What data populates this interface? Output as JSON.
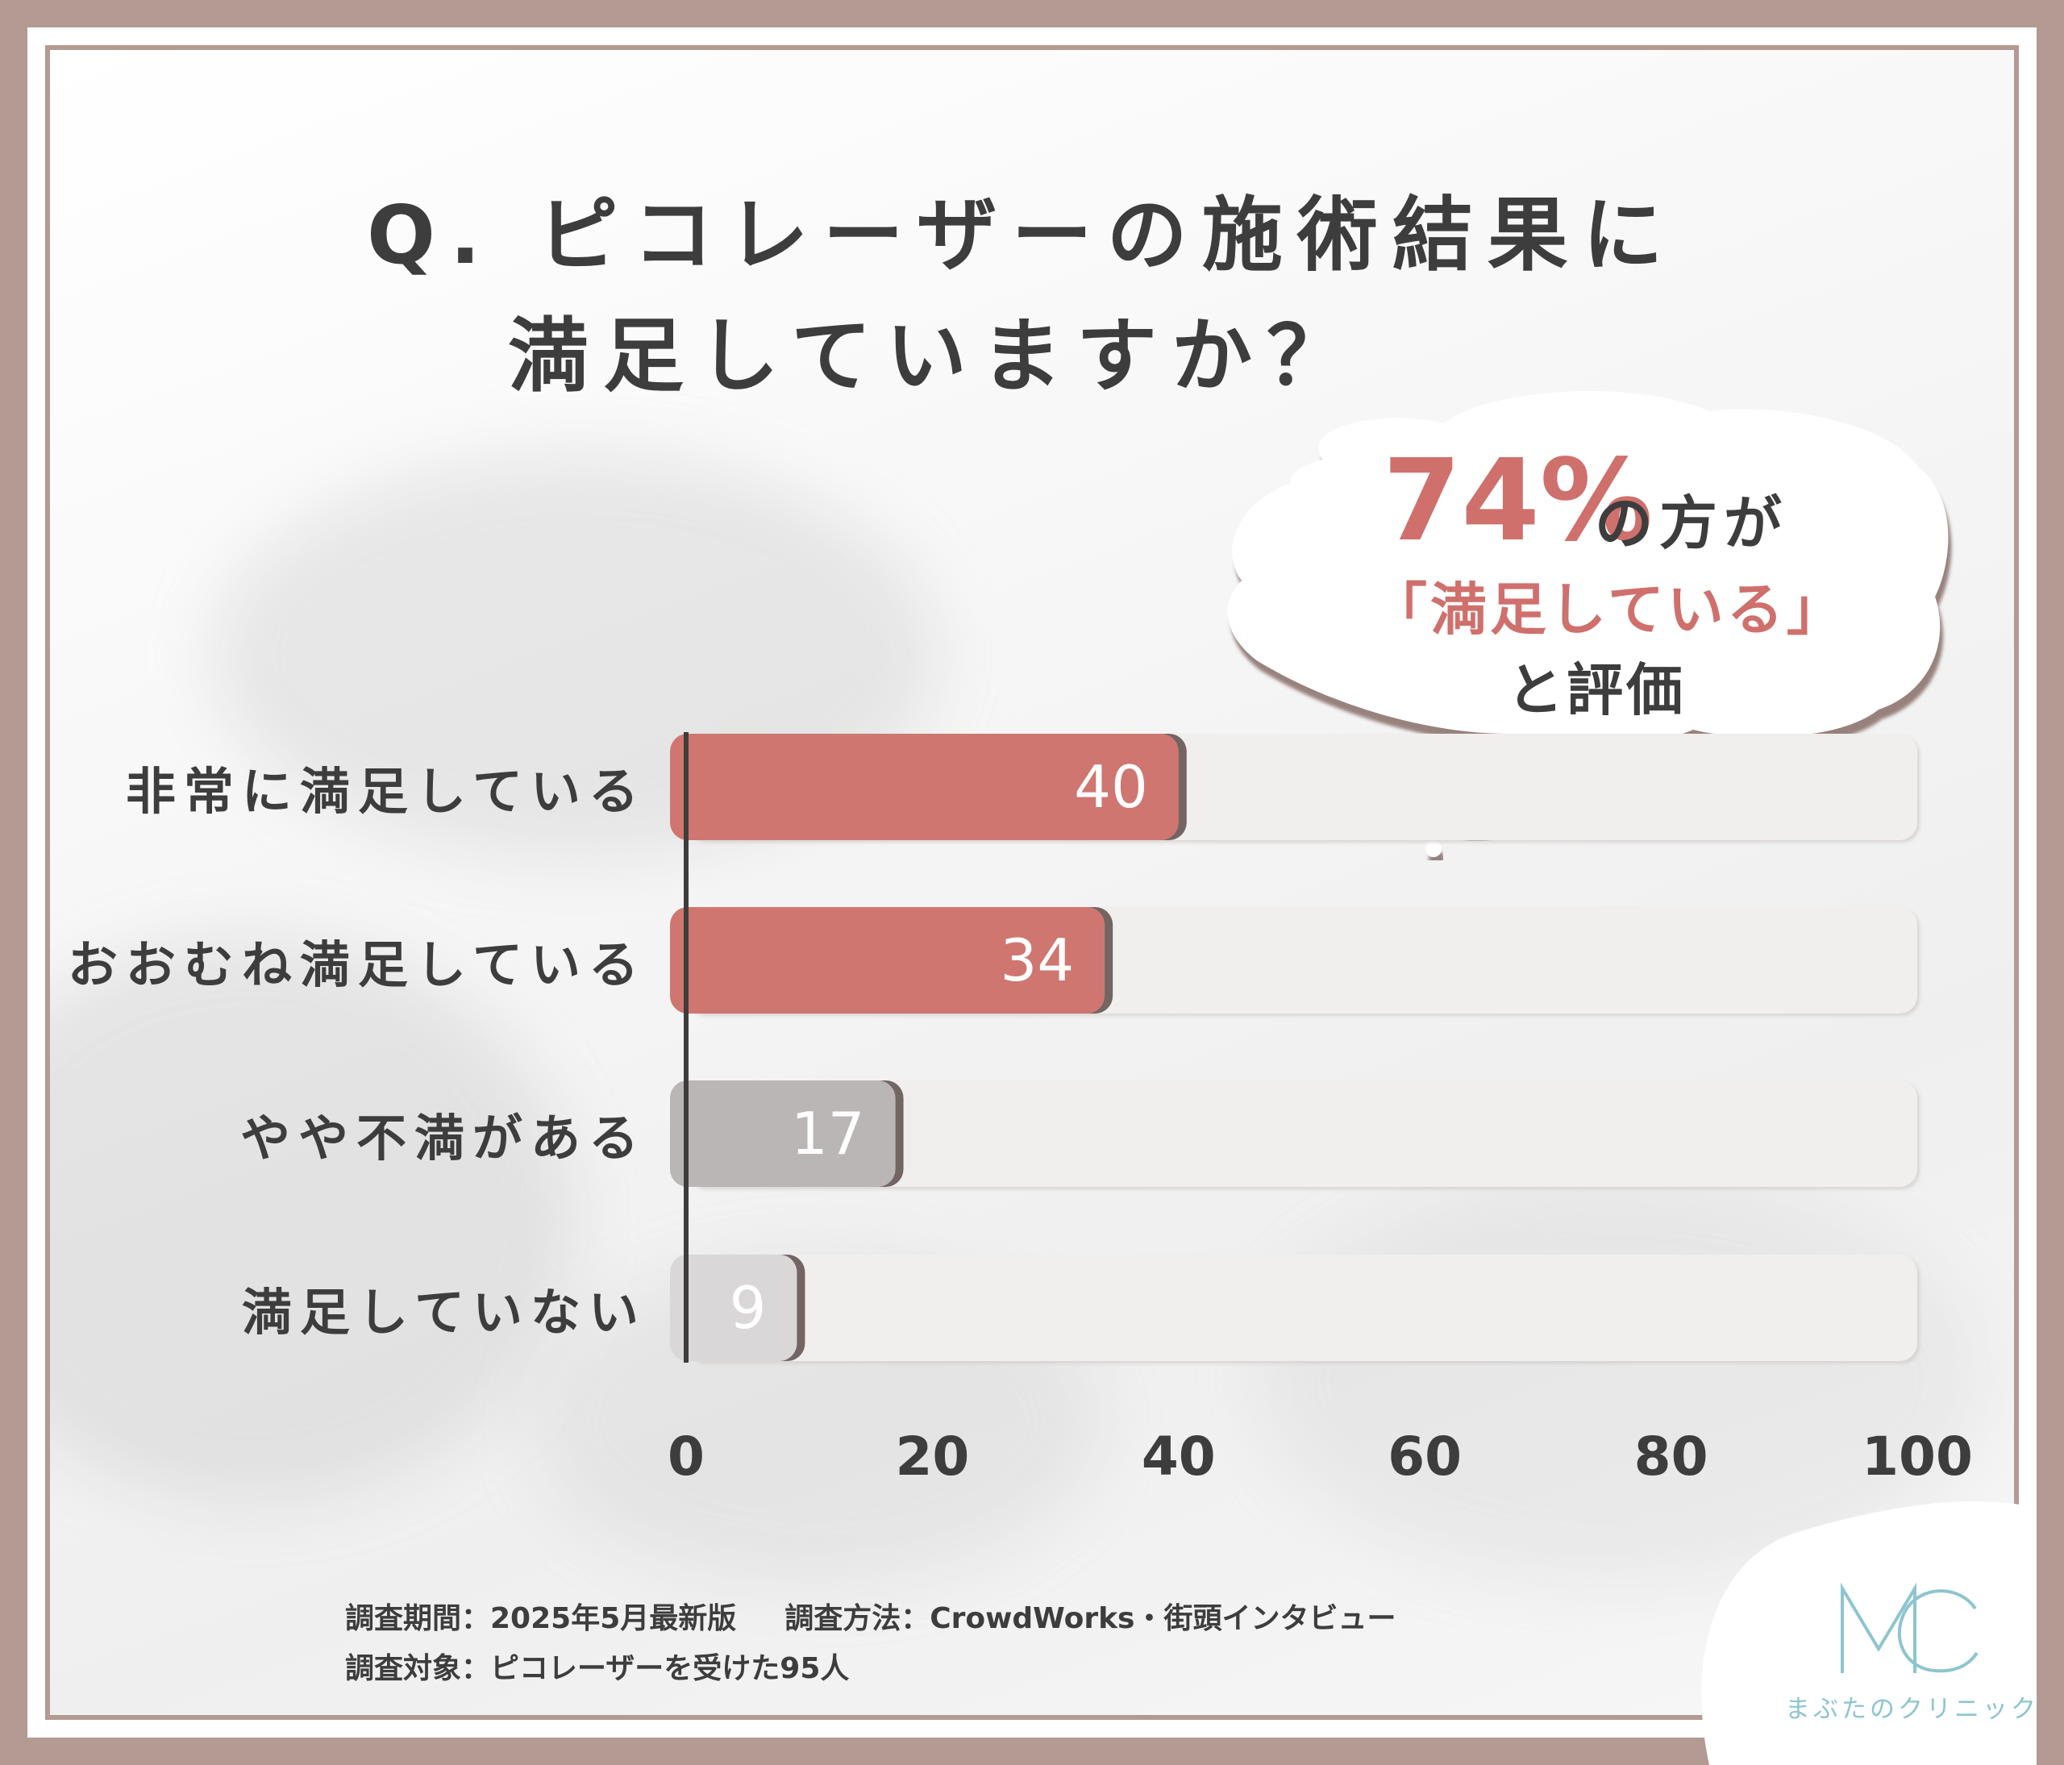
{
  "title": {
    "line1": "Q. ピコレーザーの施術結果に",
    "line2": "満足していますか？"
  },
  "callout": {
    "percent": "74%",
    "after_percent": "の方が",
    "line2": "「満足している」",
    "line3": "と評価"
  },
  "chart_data": {
    "type": "bar",
    "orientation": "horizontal",
    "categories": [
      "非常に満足している",
      "おおむね満足している",
      "やや不満がある",
      "満足していない"
    ],
    "values": [
      40,
      34,
      17,
      9
    ],
    "value_labels": [
      "40",
      "34",
      "17",
      "9"
    ],
    "xlim": [
      0,
      100
    ],
    "xticks": [
      "0",
      "20",
      "40",
      "60",
      "80",
      "100"
    ],
    "grid": false,
    "bar_colors": [
      "#cf7670",
      "#cf7670",
      "#b9b6b5",
      "#d9d7d7"
    ],
    "track_color": "#f1efee"
  },
  "notes": {
    "period_label": "調査期間：2025年5月最新版",
    "method_label": "調査方法：CrowdWorks・街頭インタビュー",
    "target_label": "調査対象：ピコレーザーを受けた95人"
  },
  "logo": {
    "mark": "MC",
    "name": "まぶたのクリニック",
    "color": "#8ec5ce"
  }
}
